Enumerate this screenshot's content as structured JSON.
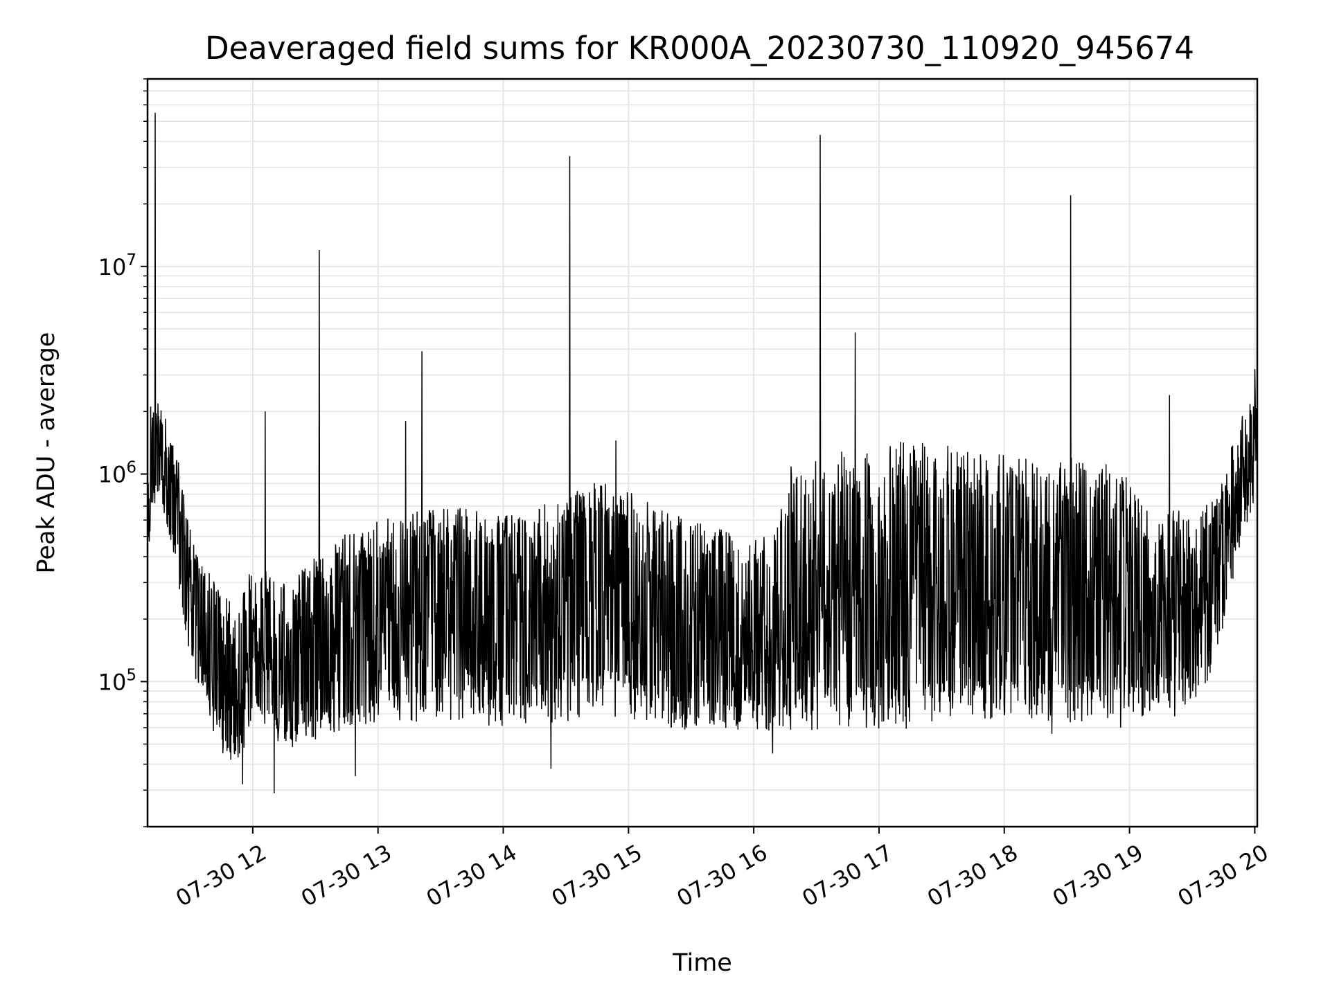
{
  "chart_data": {
    "type": "line",
    "title": "Deaveraged field sums for KR000A_20230730_110920_945674",
    "xlabel": "Time",
    "ylabel": "Peak ADU - average",
    "yscale": "log",
    "ylim": [
      20000,
      80000000
    ],
    "xlim_hours": [
      11.16,
      20.02
    ],
    "x_tick_values_hours": [
      12,
      13,
      14,
      15,
      16,
      17,
      18,
      19,
      20
    ],
    "x_tick_labels": [
      "07-30 12",
      "07-30 13",
      "07-30 14",
      "07-30 15",
      "07-30 16",
      "07-30 17",
      "07-30 18",
      "07-30 19",
      "07-30 20"
    ],
    "y_major_ticks": [
      {
        "value": 100000,
        "base": "10",
        "exp": "5"
      },
      {
        "value": 1000000,
        "base": "10",
        "exp": "6"
      },
      {
        "value": 10000000,
        "base": "10",
        "exp": "7"
      }
    ],
    "grid": true,
    "line_color": "#000000",
    "grid_color": "#e5e5e5",
    "series": [
      {
        "name": "",
        "x_hours": [
          11.16,
          11.2,
          11.25,
          11.3,
          11.35,
          11.4,
          11.45,
          11.5,
          11.55,
          11.6,
          11.65,
          11.7,
          11.75,
          11.8,
          11.85,
          11.9,
          11.95,
          12.0,
          12.1,
          12.2,
          12.3,
          12.4,
          12.5,
          12.6,
          12.7,
          12.8,
          12.9,
          13.0,
          13.1,
          13.2,
          13.3,
          13.4,
          13.5,
          13.6,
          13.7,
          13.8,
          13.9,
          14.0,
          14.1,
          14.2,
          14.3,
          14.4,
          14.5,
          14.6,
          14.7,
          14.8,
          14.9,
          15.0,
          15.1,
          15.2,
          15.3,
          15.4,
          15.5,
          15.6,
          15.7,
          15.8,
          15.9,
          16.0,
          16.1,
          16.2,
          16.3,
          16.4,
          16.5,
          16.6,
          16.7,
          16.8,
          16.9,
          17.0,
          17.1,
          17.2,
          17.3,
          17.4,
          17.5,
          17.6,
          17.7,
          17.8,
          17.9,
          18.0,
          18.1,
          18.2,
          18.3,
          18.4,
          18.5,
          18.6,
          18.7,
          18.8,
          18.9,
          19.0,
          19.1,
          19.2,
          19.3,
          19.4,
          19.5,
          19.6,
          19.7,
          19.8,
          19.9,
          20.0
        ],
        "y_typical": [
          700000,
          1200000,
          1300000,
          1100000,
          900000,
          700000,
          450000,
          300000,
          220000,
          170000,
          140000,
          120000,
          100000,
          95000,
          90000,
          95000,
          110000,
          140000,
          130000,
          110000,
          100000,
          110000,
          120000,
          130000,
          150000,
          160000,
          170000,
          180000,
          190000,
          200000,
          210000,
          230000,
          240000,
          230000,
          220000,
          210000,
          200000,
          200000,
          210000,
          220000,
          230000,
          250000,
          270000,
          290000,
          300000,
          310000,
          300000,
          280000,
          250000,
          220000,
          200000,
          180000,
          170000,
          160000,
          160000,
          160000,
          160000,
          160000,
          150000,
          150000,
          200000,
          230000,
          240000,
          240000,
          240000,
          240000,
          240000,
          240000,
          250000,
          250000,
          250000,
          250000,
          250000,
          250000,
          250000,
          250000,
          250000,
          250000,
          240000,
          240000,
          240000,
          240000,
          250000,
          250000,
          240000,
          230000,
          210000,
          190000,
          170000,
          180000,
          200000,
          220000,
          240000,
          260000,
          300000,
          500000,
          900000,
          1200000
        ],
        "y_upper": [
          2000000,
          2300000,
          2200000,
          2000000,
          1600000,
          1200000,
          800000,
          550000,
          450000,
          400000,
          350000,
          300000,
          260000,
          250000,
          240000,
          260000,
          320000,
          400000,
          360000,
          330000,
          320000,
          350000,
          400000,
          450000,
          500000,
          540000,
          580000,
          600000,
          620000,
          650000,
          680000,
          700000,
          720000,
          700000,
          680000,
          660000,
          650000,
          650000,
          660000,
          680000,
          700000,
          750000,
          800000,
          850000,
          900000,
          920000,
          900000,
          850000,
          780000,
          720000,
          680000,
          650000,
          620000,
          600000,
          580000,
          560000,
          540000,
          520000,
          500000,
          600000,
          1150000,
          1250000,
          1300000,
          1300000,
          1300000,
          1300000,
          1300000,
          1350000,
          1400000,
          1450000,
          1450000,
          1450000,
          1400000,
          1350000,
          1300000,
          1250000,
          1250000,
          1250000,
          1200000,
          1200000,
          1150000,
          1150000,
          1200000,
          1250000,
          1200000,
          1150000,
          1050000,
          950000,
          750000,
          700000,
          700000,
          680000,
          650000,
          700000,
          800000,
          1300000,
          2000000,
          2600000
        ],
        "y_lower": [
          350000,
          600000,
          700000,
          600000,
          450000,
          300000,
          200000,
          130000,
          100000,
          80000,
          65000,
          55000,
          45000,
          40000,
          38000,
          42000,
          50000,
          60000,
          55000,
          50000,
          48000,
          50000,
          52000,
          55000,
          58000,
          60000,
          62000,
          63000,
          64000,
          64000,
          64000,
          64000,
          64000,
          63000,
          62000,
          61000,
          60000,
          60000,
          60000,
          61000,
          62000,
          63000,
          64000,
          65000,
          66000,
          67000,
          66000,
          64000,
          62000,
          60000,
          59000,
          58000,
          58000,
          58000,
          58000,
          58000,
          58000,
          58000,
          57000,
          57000,
          57000,
          58000,
          58000,
          58000,
          58000,
          58000,
          58000,
          58000,
          59000,
          59000,
          60000,
          61000,
          62000,
          63000,
          64000,
          65000,
          66000,
          66000,
          66000,
          66000,
          65000,
          64000,
          63000,
          63000,
          64000,
          65000,
          66000,
          67000,
          68000,
          70000,
          72000,
          75000,
          80000,
          90000,
          120000,
          250000,
          500000,
          700000
        ]
      }
    ],
    "spikes": [
      {
        "x_hours": 11.22,
        "y": 55000000
      },
      {
        "x_hours": 12.1,
        "y": 2000000
      },
      {
        "x_hours": 12.53,
        "y": 12000000
      },
      {
        "x_hours": 13.22,
        "y": 1800000
      },
      {
        "x_hours": 13.35,
        "y": 3900000
      },
      {
        "x_hours": 14.53,
        "y": 34000000
      },
      {
        "x_hours": 14.9,
        "y": 1450000
      },
      {
        "x_hours": 16.53,
        "y": 43000000
      },
      {
        "x_hours": 16.81,
        "y": 4800000
      },
      {
        "x_hours": 18.53,
        "y": 22000000
      },
      {
        "x_hours": 19.32,
        "y": 2400000
      },
      {
        "x_hours": 20.0,
        "y": 3200000
      }
    ],
    "dips": [
      {
        "x_hours": 11.92,
        "y": 32000
      },
      {
        "x_hours": 12.17,
        "y": 29000
      },
      {
        "x_hours": 12.82,
        "y": 35000
      },
      {
        "x_hours": 14.38,
        "y": 38000
      },
      {
        "x_hours": 16.15,
        "y": 45000
      },
      {
        "x_hours": 18.38,
        "y": 56000
      },
      {
        "x_hours": 18.93,
        "y": 60000
      },
      {
        "x_hours": 19.36,
        "y": 68000
      }
    ]
  }
}
